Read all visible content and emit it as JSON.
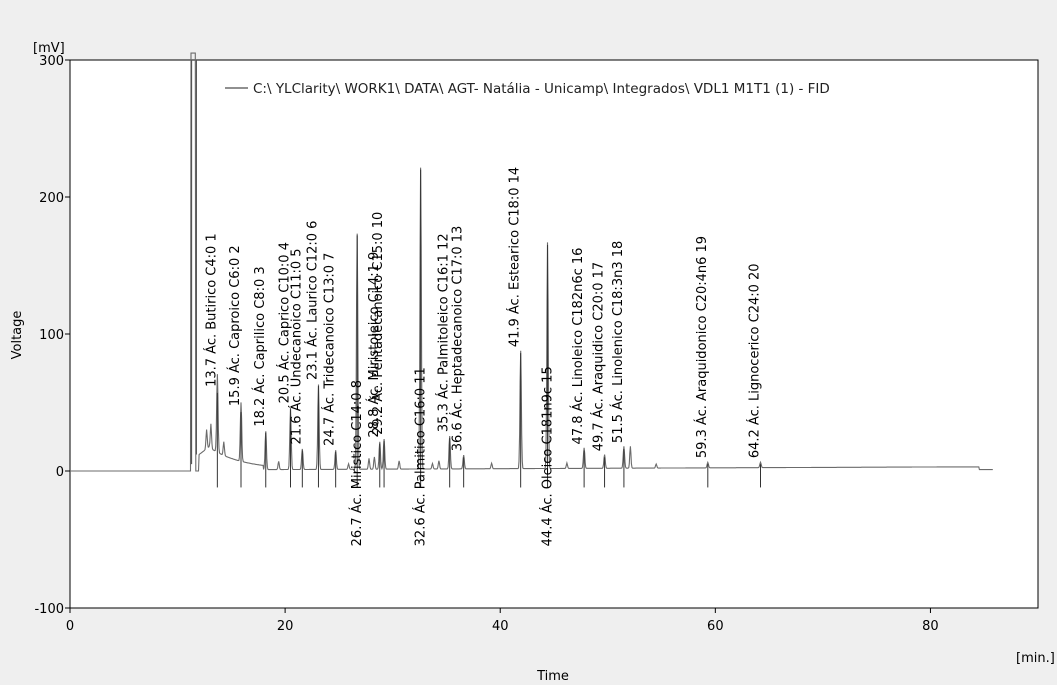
{
  "chart_data": {
    "type": "line",
    "series": [
      {
        "name": "C:\\ YLClarity\\ WORK1\\ DATA\\ AGT- Natália - Unicamp\\ Integrados\\ VDL1 M1T1 (1) - FID",
        "color": "#6b6b6b"
      }
    ],
    "xlabel": "Time",
    "x_unit": "[min.]",
    "ylabel": "Voltage",
    "y_unit": "[mV]",
    "xlim": [
      0,
      90
    ],
    "ylim": [
      -100,
      300
    ],
    "x_ticks": [
      0,
      20,
      40,
      60,
      80
    ],
    "y_ticks": [
      -100,
      0,
      100,
      200,
      300
    ],
    "grid": false,
    "legend_position": "top-center",
    "peaks": [
      {
        "rt": 13.7,
        "height": 57,
        "label": "13.7 Ác. Butirico C4:0",
        "num": "1"
      },
      {
        "rt": 15.9,
        "height": 43,
        "label": "15.9 Ác. Caproico C6:0",
        "num": "2"
      },
      {
        "rt": 18.2,
        "height": 28,
        "label": "18.2 Ác. Caprilico C8:0",
        "num": "3"
      },
      {
        "rt": 20.5,
        "height": 45,
        "label": "20.5 Ác. Caprico C10:0",
        "num": "4"
      },
      {
        "rt": 21.6,
        "height": 15,
        "label": "21.6 Ác. Undecanoico C11:0",
        "num": "5"
      },
      {
        "rt": 23.1,
        "height": 62,
        "label": "23.1 Ác. Laurico C12:0",
        "num": "6"
      },
      {
        "rt": 24.7,
        "height": 14,
        "label": "24.7 Ác. Tridecanoico C13:0",
        "num": "7"
      },
      {
        "rt": 26.7,
        "height": 172,
        "label": "26.7 Ác. Miristico C14:0",
        "num": "8"
      },
      {
        "rt": 28.8,
        "height": 20,
        "label": "28.8 Ác. Miristoleico C14:1",
        "num": "9"
      },
      {
        "rt": 29.2,
        "height": 22,
        "label": "29.2 Ác. Pentadecanoico C15:0",
        "num": "10"
      },
      {
        "rt": 32.6,
        "height": 220,
        "label": "32.6 Ác. Palmitico C16:0",
        "num": "11"
      },
      {
        "rt": 35.3,
        "height": 24,
        "label": "35.3 Ác. Palmitoleico C16:1",
        "num": "12"
      },
      {
        "rt": 36.6,
        "height": 10,
        "label": "36.6 Ác. Heptadecanoico C17:0",
        "num": "13"
      },
      {
        "rt": 41.9,
        "height": 86,
        "label": "41.9 Ác. Estearico C18:0",
        "num": "14"
      },
      {
        "rt": 44.4,
        "height": 165,
        "label": "44.4 Ác. Oleico C181n9c",
        "num": "15"
      },
      {
        "rt": 47.8,
        "height": 15,
        "label": "47.8 Ác. Linoleico C182n6c",
        "num": "16"
      },
      {
        "rt": 49.7,
        "height": 10,
        "label": "49.7 Ác. Araquidico C20:0",
        "num": "17"
      },
      {
        "rt": 51.5,
        "height": 16,
        "label": "51.5 Ác. Linolenico C18:3n3",
        "num": "18"
      },
      {
        "rt": 59.3,
        "height": 4,
        "label": "59.3 Ác. Araquidonico C20:4n6",
        "num": "19"
      },
      {
        "rt": 64.2,
        "height": 4,
        "label": "64.2 Ác. Lignocerico C24:0",
        "num": "20"
      }
    ],
    "solvent_peak": {
      "rt": 11.5,
      "height": 300
    }
  }
}
